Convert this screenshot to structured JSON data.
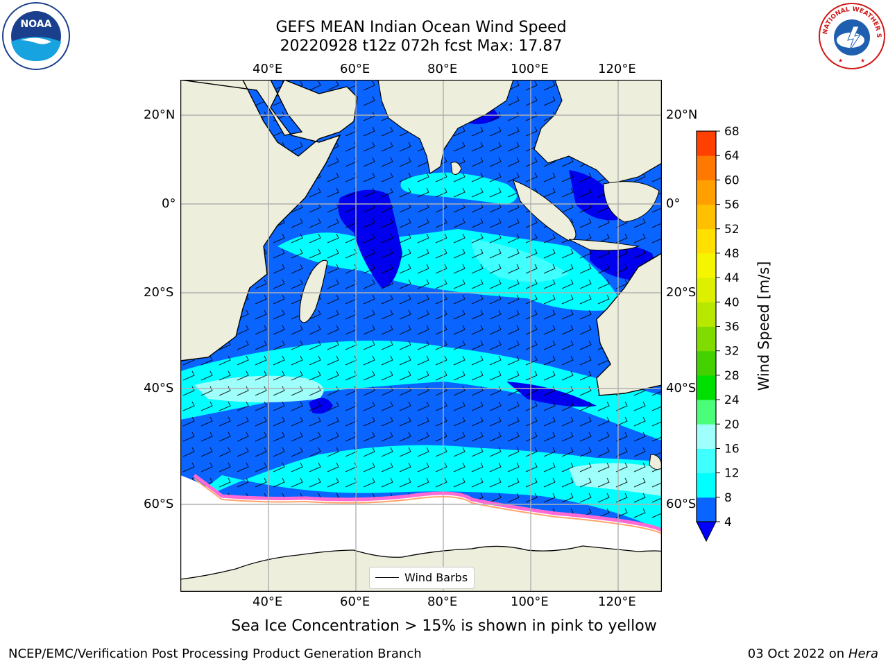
{
  "title": {
    "line1": "GEFS MEAN Indian Ocean Wind Speed",
    "line2": "20220928 t12z 072h fcst   Max: 17.87"
  },
  "map": {
    "lon_labels": [
      "40°E",
      "60°E",
      "80°E",
      "100°E",
      "120°E"
    ],
    "lat_labels": [
      "20°N",
      "0°",
      "20°S",
      "40°S",
      "60°S"
    ],
    "lon_range": [
      20,
      130
    ],
    "lat_range": [
      -73,
      28
    ],
    "colors": {
      "land": "#eeeedd",
      "ice_free_south": "#ffffff",
      "grid": "#b0b0b0"
    }
  },
  "colorbar": {
    "label": "Wind Speed [m/s]",
    "ticks": [
      "4",
      "8",
      "12",
      "16",
      "20",
      "24",
      "28",
      "32",
      "36",
      "40",
      "44",
      "48",
      "52",
      "56",
      "60",
      "64",
      "68"
    ],
    "colors": [
      "#0a64ff",
      "#00ffff",
      "#3fffff",
      "#9ffffa",
      "#4afe7a",
      "#00e000",
      "#45d000",
      "#80dc00",
      "#b8e800",
      "#dcf000",
      "#f5f500",
      "#ffe000",
      "#ffc000",
      "#ffa000",
      "#ff7800",
      "#ff4000",
      "#ff0000"
    ],
    "under_color": "#0000ff"
  },
  "legend": {
    "label": "Wind Barbs"
  },
  "subtitle": "Sea Ice Concentration > 15% is shown in pink to yellow",
  "footer": {
    "left": "NCEP/EMC/Verification Post Processing Product Generation Branch",
    "right_date": "03 Oct 2022 on ",
    "right_machine": "Hera"
  },
  "logos": {
    "noaa_text": "NOAA",
    "nws_text": "NATIONAL WEATHER SERVICE"
  }
}
